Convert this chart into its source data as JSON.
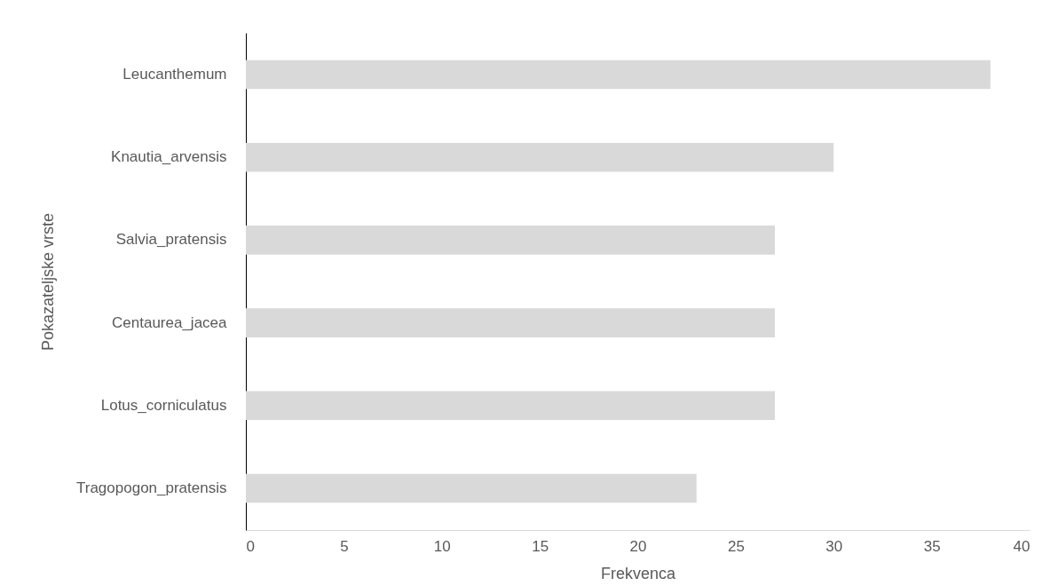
{
  "chart_data": {
    "type": "bar",
    "orientation": "horizontal",
    "xlabel": "Frekvenca",
    "ylabel": "Pokazateljske vrste",
    "categories": [
      "Leucanthemum",
      "Knautia_arvensis",
      "Salvia_pratensis",
      "Centaurea_jacea",
      "Lotus_corniculatus",
      "Tragopogon_pratensis"
    ],
    "values": [
      38,
      30,
      27,
      27,
      27,
      23
    ],
    "color": "#d9d9d9",
    "xlim": [
      0,
      40
    ],
    "xticks": [
      0,
      5,
      10,
      15,
      20,
      25,
      30,
      35,
      40
    ]
  }
}
